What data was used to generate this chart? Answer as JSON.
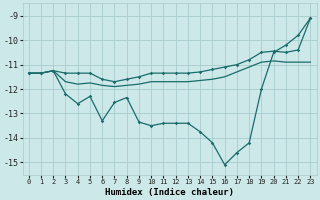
{
  "bg_color": "#cce8e8",
  "grid_color": "#aacccc",
  "line_color": "#1a6b6b",
  "xlabel": "Humidex (Indice chaleur)",
  "xlim": [
    -0.5,
    23.5
  ],
  "ylim": [
    -15.5,
    -8.5
  ],
  "yticks": [
    -9,
    -10,
    -11,
    -12,
    -13,
    -14,
    -15
  ],
  "xticks": [
    0,
    1,
    2,
    3,
    4,
    5,
    6,
    7,
    8,
    9,
    10,
    11,
    12,
    13,
    14,
    15,
    16,
    17,
    18,
    19,
    20,
    21,
    22,
    23
  ],
  "line_upper_x": [
    0,
    1,
    2,
    3,
    4,
    5,
    6,
    7,
    8,
    9,
    10,
    11,
    12,
    13,
    14,
    15,
    16,
    17,
    18,
    19,
    20,
    21,
    22,
    23
  ],
  "line_upper_y": [
    -11.35,
    -11.35,
    -11.25,
    -11.35,
    -11.35,
    -11.35,
    -11.6,
    -11.7,
    -11.6,
    -11.5,
    -11.35,
    -11.35,
    -11.35,
    -11.35,
    -11.3,
    -11.2,
    -11.1,
    -11.0,
    -10.8,
    -10.5,
    -10.45,
    -10.5,
    -10.4,
    -9.1
  ],
  "line_mid_x": [
    0,
    1,
    2,
    3,
    4,
    5,
    6,
    7,
    8,
    9,
    10,
    11,
    12,
    13,
    14,
    15,
    16,
    17,
    18,
    19,
    20,
    21,
    22,
    23
  ],
  "line_mid_y": [
    -11.35,
    -11.35,
    -11.25,
    -11.7,
    -11.8,
    -11.75,
    -11.85,
    -11.9,
    -11.85,
    -11.8,
    -11.7,
    -11.7,
    -11.7,
    -11.7,
    -11.65,
    -11.6,
    -11.5,
    -11.3,
    -11.1,
    -10.9,
    -10.85,
    -10.9,
    -10.9,
    -10.9
  ],
  "line_lower_x": [
    0,
    1,
    2,
    3,
    4,
    5,
    6,
    7,
    8,
    9,
    10,
    11,
    12,
    13,
    14,
    15,
    16,
    17,
    18,
    19,
    20,
    21,
    22,
    23
  ],
  "line_lower_y": [
    -11.35,
    -11.35,
    -11.25,
    -12.2,
    -12.6,
    -12.3,
    -13.3,
    -12.55,
    -12.35,
    -13.35,
    -13.5,
    -13.4,
    -13.4,
    -13.4,
    -13.75,
    -14.2,
    -15.1,
    -14.6,
    -14.2,
    -12.0,
    -10.5,
    -10.2,
    -9.8,
    -9.1
  ]
}
